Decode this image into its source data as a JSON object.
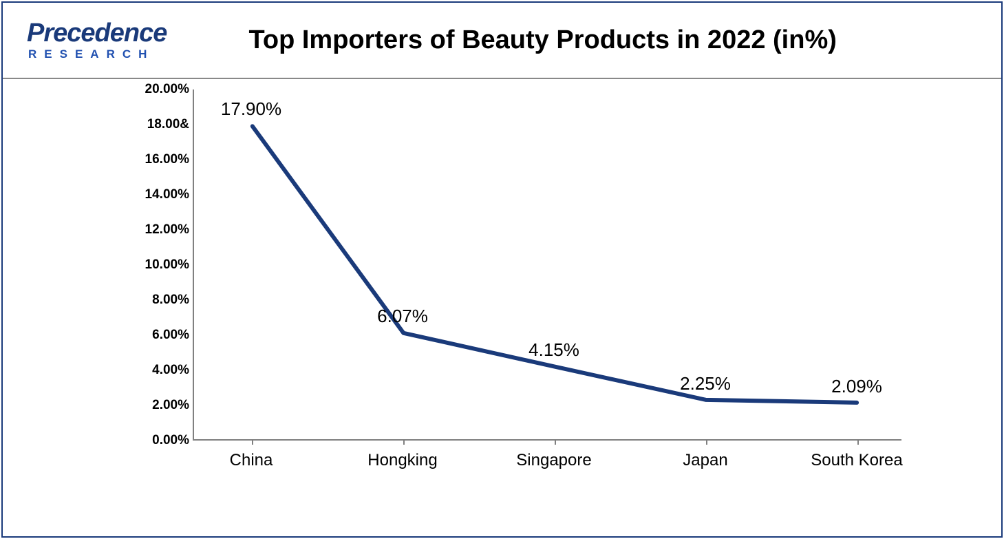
{
  "logo": {
    "main": "Precedence",
    "sub": "RESEARCH"
  },
  "chart": {
    "type": "line",
    "title": "Top Importers of Beauty Products in 2022 (in%)",
    "title_fontsize": 38,
    "title_color": "#000000",
    "background_color": "#ffffff",
    "border_color": "#1a3a7a",
    "axis_color": "#808080",
    "axis_label_color": "#000000",
    "axis_label_fontsize": 19,
    "x_label_fontsize": 24,
    "data_label_fontsize": 26,
    "line_color": "#1a3a7a",
    "line_width": 6,
    "ylim": [
      0,
      20
    ],
    "ytick_step": 2,
    "y_ticks": [
      {
        "value": 0,
        "label": "0.00%"
      },
      {
        "value": 2,
        "label": "2.00%"
      },
      {
        "value": 4,
        "label": "4.00%"
      },
      {
        "value": 6,
        "label": "6.00%"
      },
      {
        "value": 8,
        "label": "8.00%"
      },
      {
        "value": 10,
        "label": "10.00%"
      },
      {
        "value": 12,
        "label": "12.00%"
      },
      {
        "value": 14,
        "label": "14.00%"
      },
      {
        "value": 16,
        "label": "16.00%"
      },
      {
        "value": 18,
        "label": "18.00&"
      },
      {
        "value": 20,
        "label": "20.00%"
      }
    ],
    "categories": [
      "China",
      "Hongking",
      "Singapore",
      "Japan",
      "South Korea"
    ],
    "values": [
      17.9,
      6.07,
      4.15,
      2.25,
      2.09
    ],
    "value_labels": [
      "17.90%",
      "6.07%",
      "4.15%",
      "2.25%",
      "2.09%"
    ],
    "grid": false
  }
}
